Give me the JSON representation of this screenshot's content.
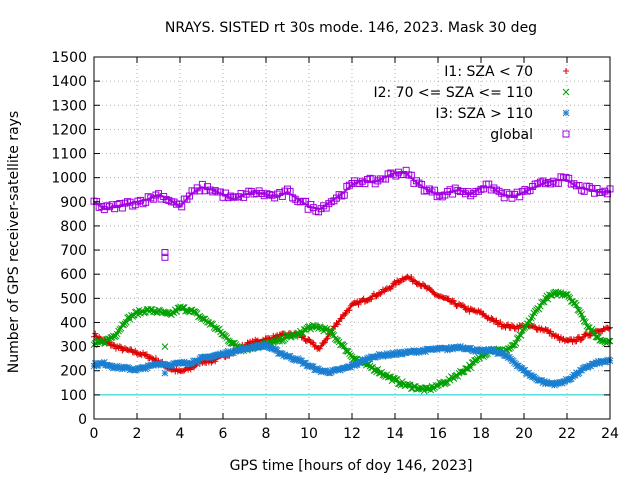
{
  "chart_data": {
    "type": "scatter",
    "title": "NRAYS. SISTED rt 30s mode. 146, 2023. Mask 30 deg",
    "xlabel": "GPS time [hours of doy 146, 2023]",
    "ylabel": "Number of GPS receiver-satellite rays",
    "xlim": [
      0,
      24
    ],
    "ylim": [
      0,
      1500
    ],
    "x_ticks": [
      0,
      2,
      4,
      6,
      8,
      10,
      12,
      14,
      16,
      18,
      20,
      22,
      24
    ],
    "y_ticks": [
      0,
      100,
      200,
      300,
      400,
      500,
      600,
      700,
      800,
      900,
      1000,
      1100,
      1200,
      1300,
      1400,
      1500
    ],
    "grid": true,
    "legend_position": "top-right",
    "threshold_line": {
      "y": 100,
      "color": "#00d0d0"
    },
    "series": [
      {
        "name": "I1: SZA < 70",
        "color": "#e00000",
        "marker": "+",
        "x": [
          0,
          0.5,
          1,
          1.5,
          2,
          2.5,
          3,
          3.5,
          4,
          4.5,
          5,
          5.5,
          6,
          6.5,
          7,
          7.5,
          8,
          8.5,
          9,
          9.5,
          10,
          10.5,
          11,
          11.5,
          12,
          12.5,
          13,
          13.5,
          14,
          14.5,
          15,
          15.5,
          16,
          16.5,
          17,
          17.5,
          18,
          18.5,
          19,
          19.5,
          20,
          20.5,
          21,
          21.5,
          22,
          22.5,
          23,
          23.5,
          24
        ],
        "values": [
          350,
          320,
          300,
          285,
          275,
          260,
          240,
          210,
          195,
          210,
          240,
          240,
          260,
          280,
          305,
          320,
          330,
          340,
          350,
          350,
          320,
          290,
          360,
          420,
          470,
          490,
          510,
          530,
          560,
          590,
          570,
          540,
          510,
          490,
          470,
          450,
          440,
          410,
          390,
          380,
          385,
          380,
          370,
          340,
          320,
          330,
          350,
          370,
          375
        ]
      },
      {
        "name": "I2: 70 <= SZA <= 110",
        "color": "#00a000",
        "marker": "x",
        "x": [
          0,
          0.5,
          1,
          1.5,
          2,
          2.5,
          3,
          3.5,
          4,
          4.5,
          5,
          5.5,
          6,
          6.5,
          7,
          7.5,
          8,
          8.5,
          9,
          9.5,
          10,
          10.5,
          11,
          11.5,
          12,
          12.5,
          13,
          13.5,
          14,
          14.5,
          15,
          15.5,
          16,
          16.5,
          17,
          17.5,
          18,
          18.5,
          19,
          19.5,
          20,
          20.5,
          21,
          21.5,
          22,
          22.5,
          23,
          23.5,
          24
        ],
        "values": [
          310,
          320,
          350,
          410,
          440,
          450,
          445,
          430,
          460,
          450,
          420,
          390,
          350,
          310,
          290,
          300,
          310,
          320,
          340,
          350,
          380,
          380,
          360,
          310,
          260,
          230,
          210,
          185,
          160,
          140,
          130,
          120,
          140,
          160,
          190,
          220,
          260,
          290,
          280,
          300,
          370,
          440,
          500,
          520,
          520,
          460,
          380,
          330,
          320
        ]
      },
      {
        "name": "I3: SZA > 110",
        "color": "#1a7fd0",
        "marker": "*",
        "x": [
          0,
          0.5,
          1,
          1.5,
          2,
          2.5,
          3,
          3.5,
          4,
          4.5,
          5,
          5.5,
          6,
          6.5,
          7,
          7.5,
          8,
          8.5,
          9,
          9.5,
          10,
          10.5,
          11,
          11.5,
          12,
          12.5,
          13,
          13.5,
          14,
          14.5,
          15,
          15.5,
          16,
          16.5,
          17,
          17.5,
          18,
          18.5,
          19,
          19.5,
          20,
          20.5,
          21,
          21.5,
          22,
          22.5,
          23,
          23.5,
          24
        ],
        "values": [
          225,
          230,
          215,
          210,
          205,
          215,
          230,
          225,
          230,
          235,
          250,
          260,
          270,
          280,
          290,
          300,
          305,
          280,
          260,
          245,
          220,
          200,
          195,
          205,
          220,
          240,
          260,
          265,
          270,
          275,
          280,
          285,
          290,
          290,
          300,
          290,
          280,
          285,
          270,
          240,
          200,
          170,
          150,
          145,
          160,
          190,
          220,
          235,
          240
        ]
      },
      {
        "name": "global",
        "color": "#a000e0",
        "marker": "square",
        "x": [
          0,
          0.5,
          1,
          1.5,
          2,
          2.5,
          3,
          3.5,
          4,
          4.5,
          5,
          5.5,
          6,
          6.5,
          7,
          7.5,
          8,
          8.5,
          9,
          9.5,
          10,
          10.5,
          11,
          11.5,
          12,
          12.5,
          13,
          13.5,
          14,
          14.5,
          15,
          15.5,
          16,
          16.5,
          17,
          17.5,
          18,
          18.5,
          19,
          19.5,
          20,
          20.5,
          21,
          21.5,
          22,
          22.5,
          23,
          23.5,
          24
        ],
        "values": [
          900,
          870,
          880,
          890,
          900,
          910,
          930,
          910,
          880,
          930,
          960,
          950,
          930,
          910,
          930,
          940,
          930,
          920,
          940,
          910,
          880,
          870,
          900,
          930,
          970,
          990,
          980,
          1000,
          1020,
          1020,
          980,
          950,
          930,
          940,
          950,
          930,
          960,
          960,
          930,
          920,
          940,
          960,
          980,
          990,
          990,
          960,
          950,
          940,
          940
        ]
      }
    ],
    "outliers": [
      {
        "series": "global",
        "x": [
          3.3,
          3.3
        ],
        "values": [
          670,
          690
        ]
      },
      {
        "series": "I2: 70 <= SZA <= 110",
        "x": [
          3.3
        ],
        "values": [
          300
        ]
      },
      {
        "series": "I3: SZA > 110",
        "x": [
          3.3
        ],
        "values": [
          190
        ]
      }
    ]
  }
}
